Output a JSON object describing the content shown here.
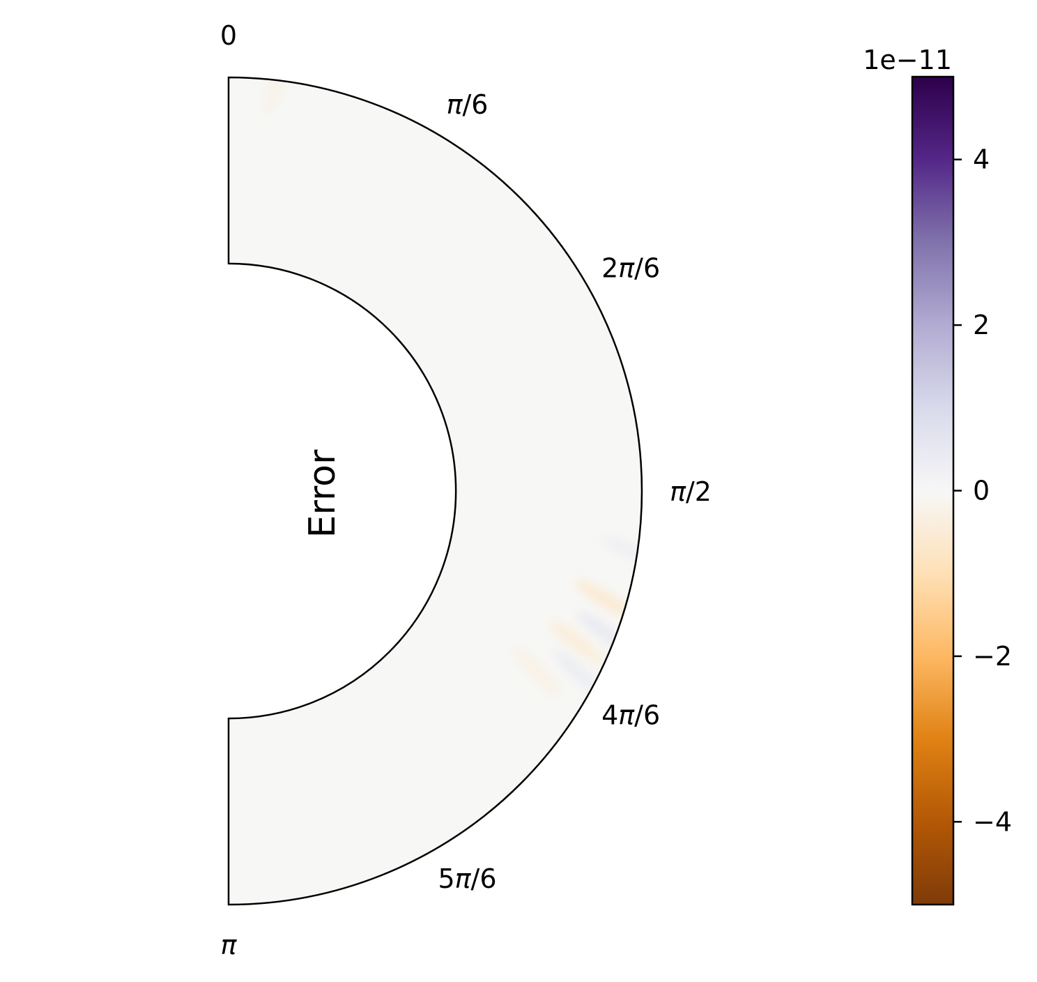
{
  "chart_data": {
    "type": "heatmap",
    "title": "Error",
    "projection": "polar half-annulus",
    "angular_range": [
      0,
      3.14159
    ],
    "angle_ticks": [
      {
        "value": 0,
        "label": "0"
      },
      {
        "value": 0.5236,
        "label": "π/6"
      },
      {
        "value": 1.0472,
        "label": "2π/6"
      },
      {
        "value": 1.5708,
        "label": "π/2"
      },
      {
        "value": 2.0944,
        "label": "4π/6"
      },
      {
        "value": 2.618,
        "label": "5π/6"
      },
      {
        "value": 3.1416,
        "label": "π"
      }
    ],
    "inner_radius_fraction": 0.55,
    "colorbar": {
      "colormap": "PuOr",
      "vmin": -5,
      "vmax": 5,
      "scale_label": "1e−11",
      "ticks": [
        {
          "value": 4,
          "label": "4"
        },
        {
          "value": 2,
          "label": "2"
        },
        {
          "value": 0,
          "label": "0"
        },
        {
          "value": -2,
          "label": "−2"
        },
        {
          "value": -4,
          "label": "−4"
        }
      ],
      "colors": [
        "#7f3b08",
        "#b35806",
        "#e08214",
        "#fdb863",
        "#fee0b6",
        "#f7f7f7",
        "#d8daeb",
        "#b2abd2",
        "#8073ac",
        "#542788",
        "#2d004b"
      ]
    },
    "features": [
      {
        "angle": 1.85,
        "radius_fraction": 0.88,
        "value": -1.0
      },
      {
        "angle": 1.93,
        "radius_fraction": 0.94,
        "value": 0.8
      },
      {
        "angle": 1.98,
        "radius_fraction": 0.82,
        "value": -0.8
      },
      {
        "angle": 2.05,
        "radius_fraction": 0.9,
        "value": 0.6
      },
      {
        "angle": 2.1,
        "radius_fraction": 0.7,
        "value": -0.5
      },
      {
        "angle": 1.72,
        "radius_fraction": 0.98,
        "value": 0.5
      },
      {
        "angle": 0.12,
        "radius_fraction": 0.99,
        "value": -0.4
      }
    ]
  }
}
